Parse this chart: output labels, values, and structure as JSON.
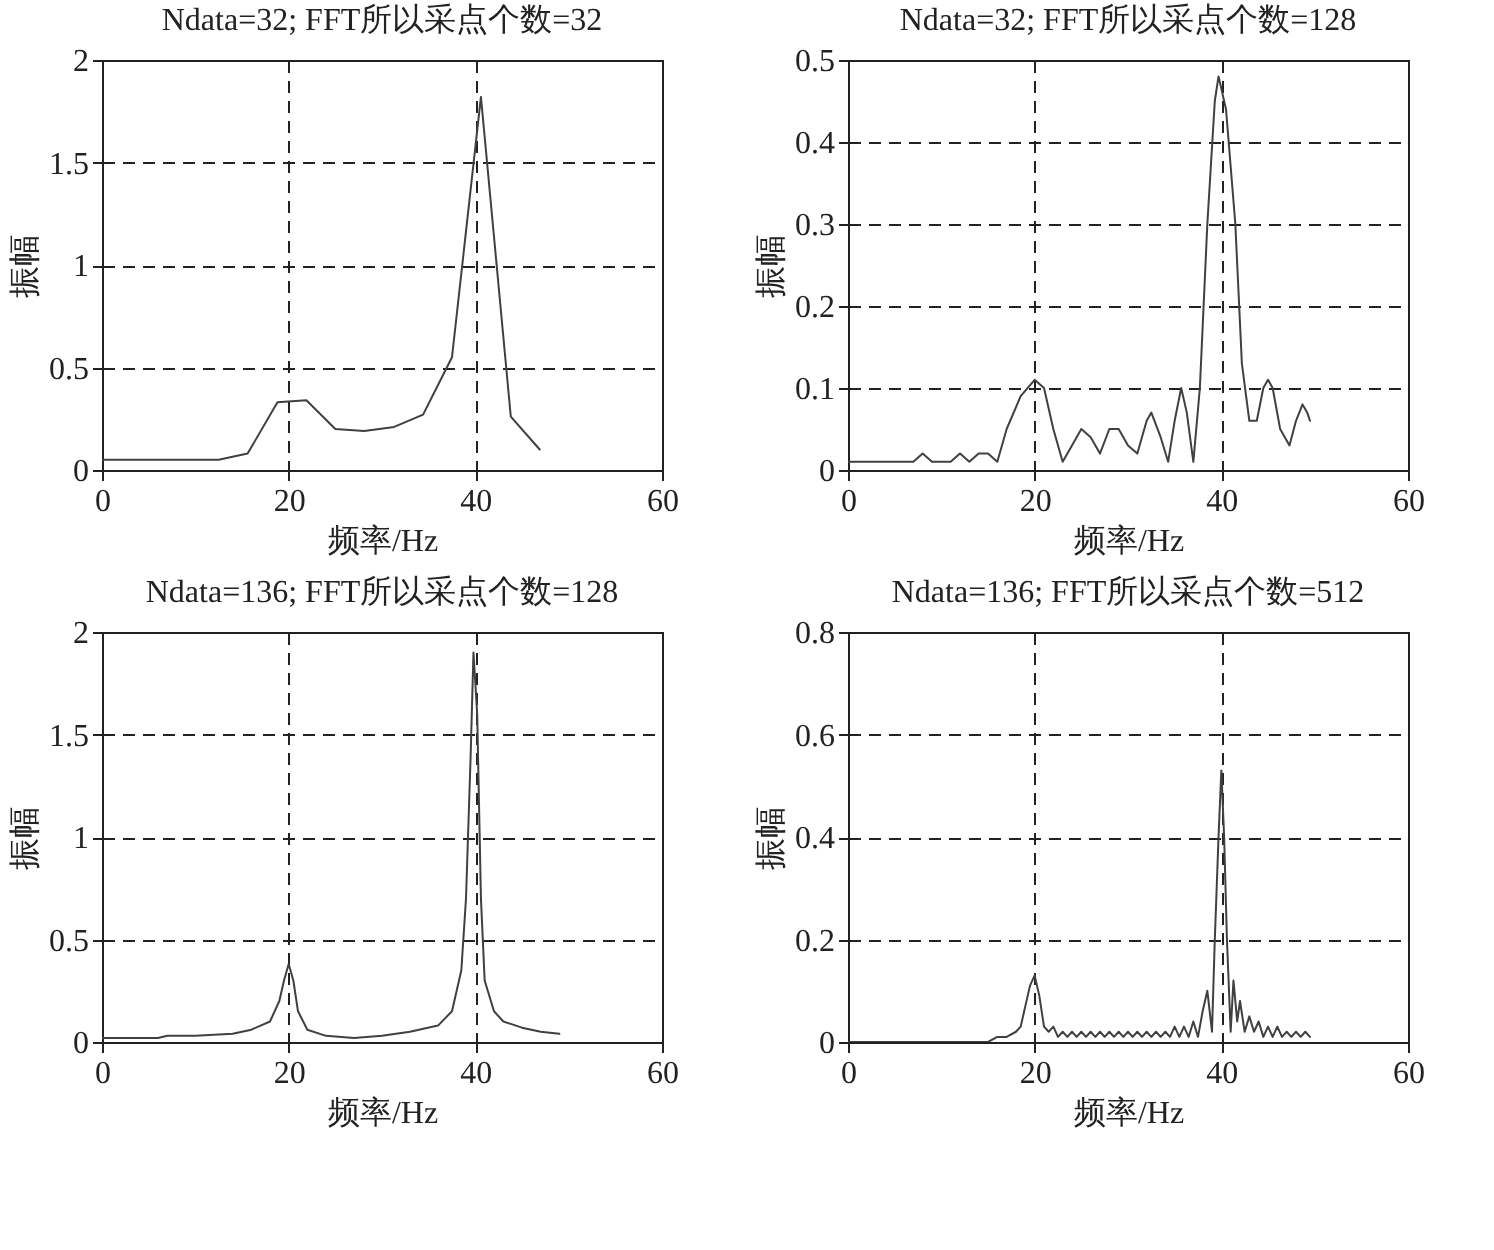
{
  "chart_data": [
    {
      "type": "line",
      "title": "Ndata=32; FFT所以采点个数=32",
      "xlabel": "频率/Hz",
      "ylabel": "振幅",
      "xlim": [
        0,
        60
      ],
      "xticks": [
        0,
        20,
        40,
        60
      ],
      "ylim": [
        0,
        2
      ],
      "yticks": [
        0,
        0.5,
        1,
        1.5,
        2
      ],
      "grid": true,
      "x": [
        0,
        3.1,
        6.3,
        9.4,
        12.5,
        15.6,
        18.8,
        21.9,
        25,
        28.1,
        31.3,
        34.4,
        37.5,
        40.6,
        43.8,
        46.9
      ],
      "series": [
        {
          "color": "#404040",
          "values": [
            0.05,
            0.05,
            0.05,
            0.05,
            0.05,
            0.08,
            0.33,
            0.34,
            0.2,
            0.19,
            0.21,
            0.27,
            0.55,
            1.82,
            0.26,
            0.1
          ]
        }
      ]
    },
    {
      "type": "line",
      "title": "Ndata=32; FFT所以采点个数=128",
      "xlabel": "频率/Hz",
      "ylabel": "振幅",
      "xlim": [
        0,
        60
      ],
      "xticks": [
        0,
        20,
        40,
        60
      ],
      "ylim": [
        0,
        0.5
      ],
      "yticks": [
        0,
        0.1,
        0.2,
        0.3,
        0.4,
        0.5
      ],
      "grid": true,
      "x": [
        0,
        7,
        8,
        9,
        10,
        11,
        12,
        13,
        14,
        15,
        16,
        17,
        18.5,
        20,
        21,
        22,
        23,
        24,
        25,
        26,
        27,
        28,
        29,
        30,
        31,
        32,
        32.5,
        33.5,
        34.3,
        35,
        35.7,
        36.3,
        37,
        37.7,
        38.5,
        39.3,
        39.7,
        40.5,
        41.5,
        42.2,
        43,
        43.8,
        44.5,
        45,
        45.5,
        46.3,
        47.3,
        48,
        48.7,
        49.2,
        49.5
      ],
      "series": [
        {
          "color": "#404040",
          "values": [
            0.01,
            0.01,
            0.02,
            0.01,
            0.01,
            0.01,
            0.02,
            0.01,
            0.02,
            0.02,
            0.01,
            0.05,
            0.09,
            0.11,
            0.1,
            0.05,
            0.01,
            0.03,
            0.05,
            0.04,
            0.02,
            0.05,
            0.05,
            0.03,
            0.02,
            0.06,
            0.07,
            0.04,
            0.01,
            0.06,
            0.1,
            0.07,
            0.01,
            0.1,
            0.3,
            0.45,
            0.48,
            0.44,
            0.3,
            0.13,
            0.06,
            0.06,
            0.1,
            0.11,
            0.1,
            0.05,
            0.03,
            0.06,
            0.08,
            0.07,
            0.06
          ]
        }
      ]
    },
    {
      "type": "line",
      "title": "Ndata=136; FFT所以采点个数=128",
      "xlabel": "频率/Hz",
      "ylabel": "振幅",
      "xlim": [
        0,
        60
      ],
      "xticks": [
        0,
        20,
        40,
        60
      ],
      "ylim": [
        0,
        2
      ],
      "yticks": [
        0,
        0.5,
        1,
        1.5,
        2
      ],
      "grid": true,
      "x": [
        0,
        6,
        7,
        10,
        14,
        16,
        18,
        19,
        19.5,
        20,
        20.5,
        21,
        22,
        24,
        27,
        30,
        33,
        36,
        37.5,
        38.5,
        39,
        39.5,
        39.8,
        40.2,
        40.6,
        41,
        42,
        43,
        45,
        47,
        49
      ],
      "series": [
        {
          "color": "#404040",
          "values": [
            0.02,
            0.02,
            0.03,
            0.03,
            0.04,
            0.06,
            0.1,
            0.2,
            0.3,
            0.38,
            0.3,
            0.15,
            0.06,
            0.03,
            0.02,
            0.03,
            0.05,
            0.08,
            0.15,
            0.35,
            0.7,
            1.4,
            1.9,
            1.6,
            0.7,
            0.3,
            0.15,
            0.1,
            0.07,
            0.05,
            0.04
          ]
        }
      ]
    },
    {
      "type": "line",
      "title": "Ndata=136; FFT所以采点个数=512",
      "xlabel": "频率/Hz",
      "ylabel": "振幅",
      "xlim": [
        0,
        60
      ],
      "xticks": [
        0,
        20,
        40,
        60
      ],
      "ylim": [
        0,
        0.8
      ],
      "yticks": [
        0,
        0.2,
        0.4,
        0.6,
        0.8
      ],
      "grid": true,
      "x": [
        0,
        15,
        16,
        17,
        18,
        18.5,
        19,
        19.5,
        20,
        20.5,
        21,
        21.5,
        22,
        22.5,
        23,
        23.5,
        24,
        24.5,
        25,
        25.5,
        26,
        26.5,
        27,
        27.5,
        28,
        28.5,
        29,
        29.5,
        30,
        30.5,
        31,
        31.5,
        32,
        32.5,
        33,
        33.5,
        34,
        34.5,
        35,
        35.5,
        36,
        36.5,
        37,
        37.5,
        38,
        38.5,
        39,
        39.3,
        39.7,
        40,
        40.3,
        40.6,
        41,
        41.3,
        41.7,
        42,
        42.5,
        43,
        43.5,
        44,
        44.5,
        45,
        45.5,
        46,
        46.5,
        47,
        47.5,
        48,
        48.5,
        49,
        49.5
      ],
      "series": [
        {
          "color": "#404040",
          "values": [
            0,
            0,
            0.01,
            0.01,
            0.02,
            0.03,
            0.07,
            0.11,
            0.13,
            0.09,
            0.03,
            0.02,
            0.03,
            0.01,
            0.02,
            0.01,
            0.02,
            0.01,
            0.02,
            0.01,
            0.02,
            0.01,
            0.02,
            0.01,
            0.02,
            0.01,
            0.02,
            0.01,
            0.02,
            0.01,
            0.02,
            0.01,
            0.02,
            0.01,
            0.02,
            0.01,
            0.02,
            0.01,
            0.03,
            0.01,
            0.03,
            0.01,
            0.04,
            0.01,
            0.06,
            0.1,
            0.02,
            0.2,
            0.4,
            0.53,
            0.4,
            0.2,
            0.02,
            0.12,
            0.04,
            0.08,
            0.02,
            0.05,
            0.02,
            0.04,
            0.01,
            0.03,
            0.01,
            0.03,
            0.01,
            0.02,
            0.01,
            0.02,
            0.01,
            0.02,
            0.01
          ]
        }
      ]
    }
  ]
}
